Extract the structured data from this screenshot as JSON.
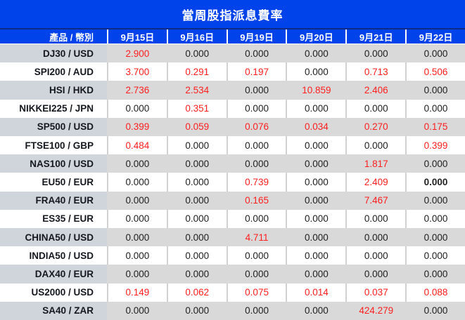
{
  "colors": {
    "header_blue": "#0143eb",
    "title_divider_navy": "#0c2c87",
    "positive_value_red": "#ff1e1e",
    "zero_value_black": "#202020",
    "gray_row_background": "#d9d9d9",
    "gray_label_background": "#d0d4db",
    "white_row_background": "#ffffff"
  },
  "chart_data": {
    "type": "table",
    "title": "當周股指派息費率",
    "columns": [
      "產品 / 幣別",
      "9月15日",
      "9月16日",
      "9月19日",
      "9月20日",
      "9月21日",
      "9月22日"
    ],
    "rows": [
      {
        "product": "DJ30 / USD",
        "values": [
          "2.900",
          "0.000",
          "0.000",
          "0.000",
          "0.000",
          "0.000"
        ],
        "red": [
          true,
          false,
          false,
          false,
          false,
          false
        ]
      },
      {
        "product": "SPI200 / AUD",
        "values": [
          "3.700",
          "0.291",
          "0.197",
          "0.000",
          "0.713",
          "0.506"
        ],
        "red": [
          true,
          true,
          true,
          false,
          true,
          true
        ]
      },
      {
        "product": "HSI / HKD",
        "values": [
          "2.736",
          "2.534",
          "0.000",
          "10.859",
          "2.406",
          "0.000"
        ],
        "red": [
          true,
          true,
          false,
          true,
          true,
          false
        ]
      },
      {
        "product": "NIKKEI225 / JPN",
        "values": [
          "0.000",
          "0.351",
          "0.000",
          "0.000",
          "0.000",
          "0.000"
        ],
        "red": [
          false,
          true,
          false,
          false,
          false,
          false
        ]
      },
      {
        "product": "SP500 / USD",
        "values": [
          "0.399",
          "0.059",
          "0.076",
          "0.034",
          "0.270",
          "0.175"
        ],
        "red": [
          true,
          true,
          true,
          true,
          true,
          true
        ]
      },
      {
        "product": "FTSE100 / GBP",
        "values": [
          "0.484",
          "0.000",
          "0.000",
          "0.000",
          "0.000",
          "0.399"
        ],
        "red": [
          true,
          false,
          false,
          false,
          false,
          true
        ]
      },
      {
        "product": "NAS100 / USD",
        "values": [
          "0.000",
          "0.000",
          "0.000",
          "0.000",
          "1.817",
          "0.000"
        ],
        "red": [
          false,
          false,
          false,
          false,
          true,
          false
        ]
      },
      {
        "product": "EU50 / EUR",
        "values": [
          "0.000",
          "0.000",
          "0.739",
          "0.000",
          "2.409",
          "0.000"
        ],
        "red": [
          false,
          false,
          true,
          false,
          true,
          false
        ],
        "bold": [
          false,
          false,
          false,
          false,
          false,
          true
        ]
      },
      {
        "product": "FRA40 / EUR",
        "values": [
          "0.000",
          "0.000",
          "0.165",
          "0.000",
          "7.467",
          "0.000"
        ],
        "red": [
          false,
          false,
          true,
          false,
          true,
          false
        ]
      },
      {
        "product": "ES35 / EUR",
        "values": [
          "0.000",
          "0.000",
          "0.000",
          "0.000",
          "0.000",
          "0.000"
        ],
        "red": [
          false,
          false,
          false,
          false,
          false,
          false
        ]
      },
      {
        "product": "CHINA50 / USD",
        "values": [
          "0.000",
          "0.000",
          "4.711",
          "0.000",
          "0.000",
          "0.000"
        ],
        "red": [
          false,
          false,
          true,
          false,
          false,
          false
        ]
      },
      {
        "product": "INDIA50 / USD",
        "values": [
          "0.000",
          "0.000",
          "0.000",
          "0.000",
          "0.000",
          "0.000"
        ],
        "red": [
          false,
          false,
          false,
          false,
          false,
          false
        ]
      },
      {
        "product": "DAX40 / EUR",
        "values": [
          "0.000",
          "0.000",
          "0.000",
          "0.000",
          "0.000",
          "0.000"
        ],
        "red": [
          false,
          false,
          false,
          false,
          false,
          false
        ]
      },
      {
        "product": "US2000 / USD",
        "values": [
          "0.149",
          "0.062",
          "0.075",
          "0.014",
          "0.037",
          "0.088"
        ],
        "red": [
          true,
          true,
          true,
          true,
          true,
          true
        ]
      },
      {
        "product": "SA40 / ZAR",
        "values": [
          "0.000",
          "0.000",
          "0.000",
          "0.000",
          "424.279",
          "0.000"
        ],
        "red": [
          false,
          false,
          false,
          false,
          true,
          false
        ]
      }
    ]
  }
}
